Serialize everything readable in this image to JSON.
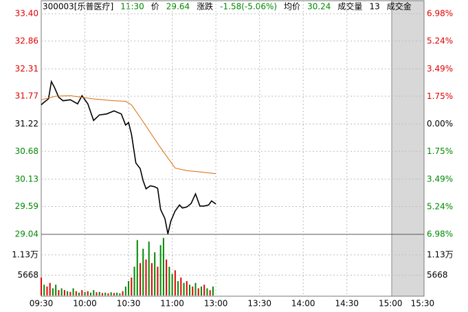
{
  "chart_data": {
    "type": "intraday",
    "header": {
      "code": "300003[乐普医疗]",
      "time": "11:30",
      "price_label": "价",
      "price": "29.64",
      "change_label": "涨跌",
      "change": "-1.58(-5.06%)",
      "avg_label": "均价",
      "avg": "30.24",
      "volume_label": "成交量",
      "volume": "13",
      "amount_label": "成交金"
    },
    "xlim": [
      0,
      263
    ],
    "xticks": [
      {
        "value": 0,
        "label": "09:30"
      },
      {
        "value": 30,
        "label": "10:00"
      },
      {
        "value": 60,
        "label": "10:30"
      },
      {
        "value": 90,
        "label": "11:00"
      },
      {
        "value": 120,
        "label": "13:00"
      },
      {
        "value": 150,
        "label": "13:30"
      },
      {
        "value": 180,
        "label": "14:00"
      },
      {
        "value": 210,
        "label": "14:30"
      },
      {
        "value": 240,
        "label": "15:00"
      },
      {
        "value": 262,
        "label": "15:30"
      }
    ],
    "ylim": [
      29.04,
      33.4
    ],
    "yticks": [
      {
        "value": 33.4,
        "label": "33.40"
      },
      32.86,
      32.31,
      31.77,
      31.22,
      30.68,
      30.13,
      29.59,
      29.04
    ],
    "y2lim": [
      -6.98,
      6.98
    ],
    "y2ticks": [
      {
        "value": 6.98,
        "label": "6.98%"
      },
      {
        "value": 5.24,
        "label": "5.24%"
      },
      {
        "value": 3.49,
        "label": "3.49%"
      },
      {
        "value": 1.75,
        "label": "1.75%"
      },
      {
        "value": 0,
        "label": "0.00%"
      },
      {
        "value": -1.75,
        "label": "1.75%"
      },
      {
        "value": -3.49,
        "label": "3.49%"
      },
      {
        "value": -5.24,
        "label": "5.24%"
      },
      {
        "value": -6.98,
        "label": "6.98%"
      }
    ],
    "up_color": "#e00000",
    "down_color": "#008800",
    "grid": true,
    "series": [
      {
        "color": "#000000",
        "x": [
          0,
          2,
          5,
          7,
          9,
          12,
          15,
          20,
          25,
          28,
          32,
          36,
          40,
          45,
          50,
          55,
          58,
          60,
          62,
          65,
          68,
          70,
          72,
          75,
          78,
          80,
          82,
          85,
          87,
          89,
          92,
          95,
          97,
          100,
          103,
          106,
          109,
          112,
          115,
          117,
          120
        ],
        "values": [
          31.6,
          31.65,
          31.72,
          32.06,
          31.95,
          31.75,
          31.68,
          31.7,
          31.62,
          31.78,
          31.62,
          31.29,
          31.4,
          31.42,
          31.48,
          31.42,
          31.2,
          31.25,
          31.02,
          30.45,
          30.34,
          30.1,
          29.94,
          30.0,
          29.98,
          29.95,
          29.53,
          29.35,
          29.05,
          29.3,
          29.5,
          29.62,
          29.56,
          29.58,
          29.65,
          29.84,
          29.6,
          29.6,
          29.62,
          29.7,
          29.64
        ]
      },
      {
        "color": "#d86a00",
        "x": [
          0,
          10,
          20,
          35,
          50,
          58,
          62,
          68,
          75,
          82,
          87,
          92,
          100,
          110,
          120
        ],
        "values": [
          31.7,
          31.77,
          31.78,
          31.72,
          31.68,
          31.67,
          31.6,
          31.35,
          31.05,
          30.75,
          30.55,
          30.35,
          30.3,
          30.27,
          30.24
        ]
      }
    ],
    "volume": {
      "vlim": [
        0,
        17000
      ],
      "vticks": [
        {
          "value": 11300,
          "label": "1.13万"
        },
        5668
      ],
      "x": [
        0,
        2,
        4,
        6,
        8,
        10,
        12,
        14,
        16,
        18,
        20,
        22,
        24,
        26,
        28,
        30,
        32,
        34,
        36,
        38,
        40,
        42,
        44,
        46,
        48,
        50,
        52,
        54,
        56,
        58,
        60,
        62,
        64,
        66,
        68,
        70,
        72,
        74,
        76,
        78,
        80,
        82,
        84,
        86,
        88,
        90,
        92,
        94,
        96,
        98,
        100,
        102,
        104,
        106,
        108,
        110,
        112,
        114,
        116,
        118
      ],
      "values": [
        5000,
        3000,
        2500,
        3500,
        2000,
        3000,
        1500,
        2000,
        1500,
        1200,
        1000,
        2000,
        1200,
        800,
        1500,
        1000,
        1200,
        800,
        1500,
        900,
        1000,
        700,
        800,
        600,
        900,
        700,
        800,
        600,
        1200,
        2500,
        4000,
        5000,
        8000,
        15400,
        9000,
        13000,
        10000,
        15000,
        9000,
        12000,
        8000,
        14000,
        16000,
        10000,
        8000,
        6000,
        7000,
        4000,
        5000,
        3500,
        4000,
        3000,
        2500,
        3500,
        2000,
        2500,
        3000,
        2000,
        1500,
        2500
      ],
      "colors": [
        "#e00000",
        "#008800",
        "#e00000",
        "#e00000",
        "#008800",
        "#008800",
        "#e00000",
        "#008800",
        "#e00000",
        "#008800",
        "#e00000",
        "#008800",
        "#e00000",
        "#008800",
        "#e00000",
        "#008800",
        "#e00000",
        "#008800",
        "#008800",
        "#e00000",
        "#008800",
        "#e00000",
        "#008800",
        "#e00000",
        "#008800",
        "#e00000",
        "#008800",
        "#008800",
        "#e00000",
        "#008800",
        "#008800",
        "#e00000",
        "#008800",
        "#008800",
        "#e00000",
        "#008800",
        "#e00000",
        "#008800",
        "#e00000",
        "#008800",
        "#e00000",
        "#008800",
        "#008800",
        "#e00000",
        "#008800",
        "#008800",
        "#e00000",
        "#008800",
        "#e00000",
        "#008800",
        "#e00000",
        "#008800",
        "#e00000",
        "#008800",
        "#e00000",
        "#008800",
        "#e00000",
        "#008800",
        "#e00000",
        "#008800"
      ]
    }
  }
}
